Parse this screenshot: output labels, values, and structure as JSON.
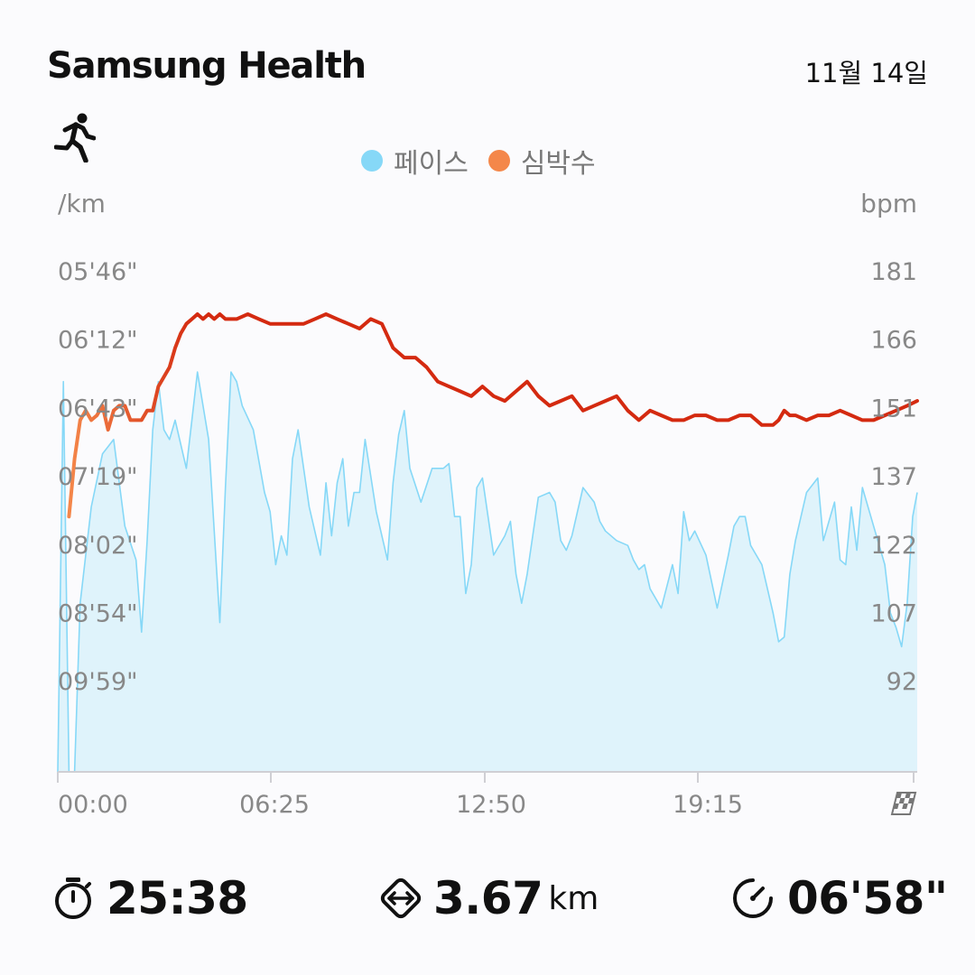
{
  "header": {
    "app_title": "Samsung Health",
    "date": "11월 14일"
  },
  "activity": {
    "icon": "running-person-icon"
  },
  "legend": [
    {
      "label": "페이스",
      "color": "#86d8f7"
    },
    {
      "label": "심박수",
      "color": "#f4874a"
    }
  ],
  "chart_data": {
    "type": "area",
    "x_ticks": [
      "00:00",
      "06:25",
      "12:50",
      "19:15"
    ],
    "finish_icon": "checkered-flag-icon",
    "left_axis": {
      "unit": "/km",
      "ticks": [
        "05'46\"",
        "06'12\"",
        "06'43\"",
        "07'19\"",
        "08'02\"",
        "08'54\"",
        "09'59\""
      ]
    },
    "right_axis": {
      "unit": "bpm",
      "ticks": [
        "181",
        "166",
        "151",
        "137",
        "122",
        "107",
        "92"
      ],
      "range": [
        77,
        181
      ]
    },
    "duration_seconds": 1538,
    "series": [
      {
        "name": "페이스",
        "color": "#86d8f7",
        "fill": "#dff3fb",
        "t": [
          0,
          10,
          20,
          30,
          40,
          60,
          80,
          100,
          120,
          140,
          150,
          160,
          170,
          180,
          190,
          200,
          210,
          230,
          250,
          270,
          290,
          300,
          310,
          320,
          330,
          350,
          370,
          380,
          390,
          400,
          410,
          420,
          430,
          450,
          470,
          480,
          490,
          500,
          510,
          520,
          530,
          540,
          550,
          570,
          590,
          600,
          610,
          620,
          630,
          650,
          670,
          690,
          700,
          710,
          720,
          730,
          740,
          750,
          760,
          780,
          800,
          810,
          820,
          830,
          840,
          860,
          880,
          890,
          900,
          910,
          920,
          940,
          960,
          970,
          980,
          1000,
          1020,
          1030,
          1040,
          1050,
          1060,
          1080,
          1100,
          1110,
          1120,
          1130,
          1140,
          1160,
          1180,
          1200,
          1210,
          1220,
          1230,
          1240,
          1260,
          1280,
          1290,
          1300,
          1310,
          1320,
          1340,
          1360,
          1370,
          1380,
          1390,
          1400,
          1410,
          1420,
          1430,
          1440,
          1460,
          1480,
          1490,
          1500,
          1510,
          1520,
          1530,
          1538
        ],
        "v": [
          77,
          158,
          77,
          77,
          112,
          132,
          143,
          146,
          128,
          121,
          106,
          125,
          148,
          158,
          148,
          146,
          150,
          140,
          160,
          146,
          108,
          136,
          160,
          158,
          153,
          148,
          135,
          131,
          120,
          126,
          122,
          142,
          148,
          132,
          122,
          137,
          126,
          137,
          142,
          128,
          135,
          135,
          146,
          131,
          121,
          137,
          147,
          152,
          140,
          133,
          140,
          140,
          141,
          130,
          130,
          114,
          120,
          136,
          138,
          122,
          126,
          129,
          118,
          112,
          118,
          134,
          135,
          133,
          125,
          123,
          126,
          136,
          133,
          129,
          127,
          125,
          124,
          121,
          119,
          120,
          115,
          111,
          120,
          114,
          131,
          125,
          127,
          122,
          111,
          122,
          128,
          130,
          130,
          124,
          120,
          110,
          104,
          105,
          118,
          125,
          135,
          138,
          125,
          129,
          133,
          121,
          120,
          132,
          123,
          136,
          128,
          120,
          110,
          107,
          103,
          112,
          130,
          135
        ]
      },
      {
        "name": "심박수",
        "color": "#d42a10",
        "t": [
          20,
          30,
          40,
          50,
          60,
          70,
          80,
          90,
          100,
          110,
          120,
          130,
          140,
          150,
          160,
          170,
          180,
          190,
          200,
          210,
          220,
          230,
          240,
          250,
          260,
          270,
          280,
          290,
          300,
          310,
          320,
          340,
          360,
          380,
          400,
          420,
          440,
          460,
          480,
          500,
          520,
          540,
          560,
          580,
          600,
          620,
          640,
          660,
          680,
          700,
          720,
          740,
          760,
          780,
          800,
          820,
          840,
          860,
          880,
          900,
          920,
          940,
          960,
          980,
          1000,
          1020,
          1040,
          1060,
          1080,
          1100,
          1120,
          1140,
          1160,
          1180,
          1200,
          1220,
          1240,
          1260,
          1280,
          1290,
          1300,
          1310,
          1320,
          1340,
          1360,
          1380,
          1400,
          1420,
          1440,
          1460,
          1480,
          1500,
          1520,
          1538
        ],
        "v": [
          130,
          142,
          150,
          152,
          150,
          151,
          153,
          148,
          152,
          153,
          153,
          150,
          150,
          150,
          152,
          152,
          157,
          159,
          161,
          165,
          168,
          170,
          171,
          172,
          171,
          172,
          171,
          172,
          171,
          171,
          171,
          172,
          171,
          170,
          170,
          170,
          170,
          171,
          172,
          171,
          170,
          169,
          171,
          170,
          165,
          163,
          163,
          161,
          158,
          157,
          156,
          155,
          157,
          155,
          154,
          156,
          158,
          155,
          153,
          154,
          155,
          152,
          153,
          154,
          155,
          152,
          150,
          152,
          151,
          150,
          150,
          151,
          151,
          150,
          150,
          151,
          151,
          149,
          149,
          150,
          152,
          151,
          151,
          150,
          151,
          151,
          152,
          151,
          150,
          150,
          151,
          152,
          153,
          154
        ]
      }
    ]
  },
  "summary": {
    "duration": "25:38",
    "distance": "3.67",
    "distance_unit": "km",
    "avg_pace": "06'58\""
  }
}
